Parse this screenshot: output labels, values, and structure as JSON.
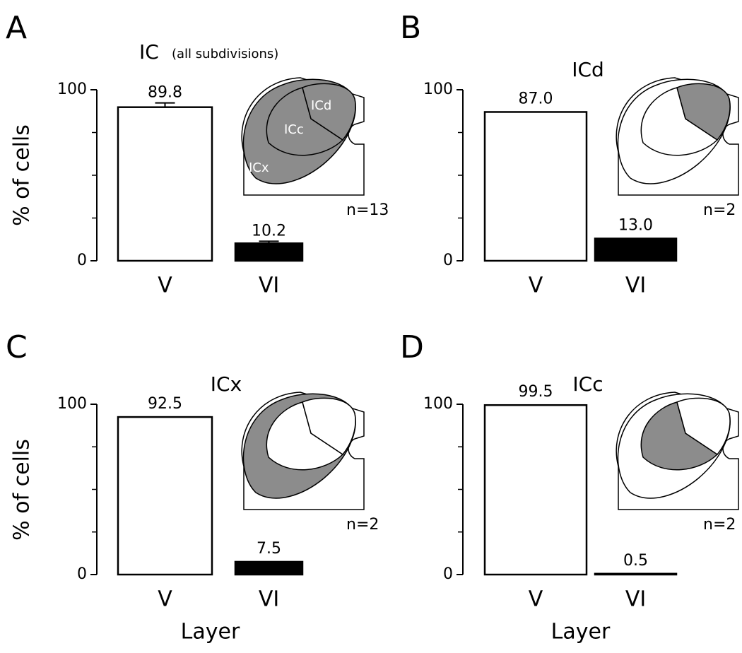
{
  "chart_data": [
    {
      "type": "bar",
      "panel": "A",
      "title": "IC",
      "subtitle": "(all subdivisions)",
      "ylabel": "% of cells",
      "categories": [
        "V",
        "VI"
      ],
      "values": [
        89.8,
        10.2
      ],
      "errors": [
        2.5,
        1.2
      ],
      "colors": [
        "#ffffff",
        "#000000"
      ],
      "ylim": [
        0,
        100
      ],
      "yticks": [
        0,
        100
      ],
      "minor_yticks": [
        25,
        50,
        75
      ],
      "inset_labels": {
        "ICd": "ICd",
        "ICc": "ICc",
        "ICx": "ICx"
      },
      "shaded": [
        "ICx",
        "ICc",
        "ICd"
      ],
      "annotation": "n=13"
    },
    {
      "type": "bar",
      "panel": "B",
      "title": "ICd",
      "categories": [
        "V",
        "VI"
      ],
      "values": [
        87,
        13
      ],
      "value_labels": [
        "87.0",
        "13.0"
      ],
      "colors": [
        "#ffffff",
        "#000000"
      ],
      "ylim": [
        0,
        100
      ],
      "yticks": [
        0,
        100
      ],
      "minor_yticks": [
        25,
        50,
        75
      ],
      "shaded": [
        "ICd"
      ],
      "annotation": "n=2"
    },
    {
      "type": "bar",
      "panel": "C",
      "title": "ICx",
      "ylabel": "% of cells",
      "xlabel": "Layer",
      "categories": [
        "V",
        "VI"
      ],
      "values": [
        92.5,
        7.5
      ],
      "colors": [
        "#ffffff",
        "#000000"
      ],
      "ylim": [
        0,
        100
      ],
      "yticks": [
        0,
        100
      ],
      "minor_yticks": [
        25,
        50,
        75
      ],
      "shaded": [
        "ICx"
      ],
      "annotation": "n=2"
    },
    {
      "type": "bar",
      "panel": "D",
      "title": "ICc",
      "xlabel": "Layer",
      "categories": [
        "V",
        "VI"
      ],
      "values": [
        99.5,
        0.5
      ],
      "colors": [
        "#ffffff",
        "#000000"
      ],
      "ylim": [
        0,
        100
      ],
      "yticks": [
        0,
        100
      ],
      "minor_yticks": [
        25,
        50,
        75
      ],
      "shaded": [
        "ICc"
      ],
      "annotation": "n=2"
    }
  ]
}
